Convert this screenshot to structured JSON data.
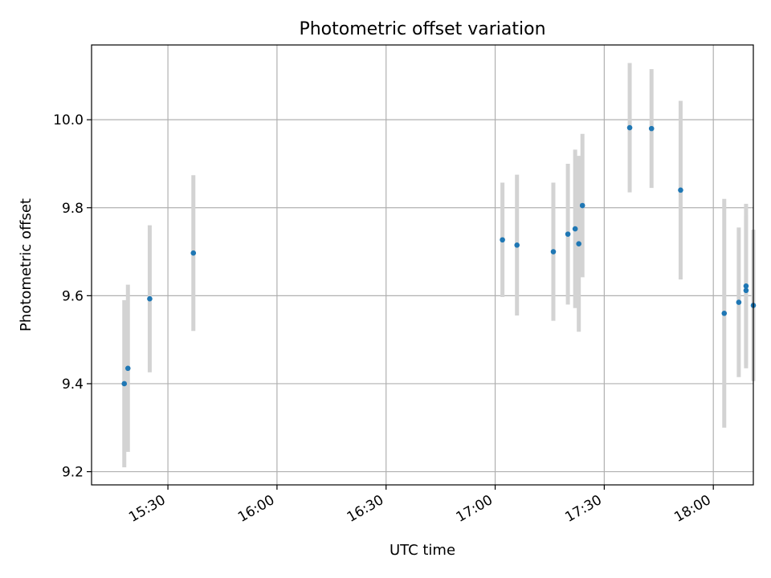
{
  "chart_data": {
    "type": "scatter",
    "title": "Photometric offset variation",
    "xlabel": "UTC time",
    "ylabel": "Photometric offset",
    "x_ticks": [
      "15:30",
      "16:00",
      "16:30",
      "17:00",
      "17:30",
      "18:00"
    ],
    "y_ticks": [
      "9.2",
      "9.4",
      "9.6",
      "9.8",
      "10.0"
    ],
    "xlim": [
      "15:09",
      "18:11"
    ],
    "ylim": [
      9.17,
      10.17
    ],
    "grid": true,
    "marker_color": "#1f77b4",
    "errorbar_color": "#d3d3d3",
    "series": [
      {
        "points": [
          {
            "x": "15:18",
            "y": 9.4,
            "yerr": 0.19
          },
          {
            "x": "15:19",
            "y": 9.435,
            "yerr": 0.19
          },
          {
            "x": "15:25",
            "y": 9.593,
            "yerr": 0.167
          },
          {
            "x": "15:37",
            "y": 9.697,
            "yerr": 0.177
          },
          {
            "x": "17:02",
            "y": 9.727,
            "yerr": 0.13
          },
          {
            "x": "17:06",
            "y": 9.715,
            "yerr": 0.16
          },
          {
            "x": "17:16",
            "y": 9.7,
            "yerr": 0.157
          },
          {
            "x": "17:20",
            "y": 9.74,
            "yerr": 0.16
          },
          {
            "x": "17:22",
            "y": 9.752,
            "yerr": 0.18
          },
          {
            "x": "17:23",
            "y": 9.718,
            "yerr": 0.2
          },
          {
            "x": "17:24",
            "y": 9.805,
            "yerr": 0.163
          },
          {
            "x": "17:37",
            "y": 9.982,
            "yerr": 0.147
          },
          {
            "x": "17:43",
            "y": 9.98,
            "yerr": 0.135
          },
          {
            "x": "17:51",
            "y": 9.84,
            "yerr": 0.203
          },
          {
            "x": "18:03",
            "y": 9.56,
            "yerr": 0.26
          },
          {
            "x": "18:07",
            "y": 9.585,
            "yerr": 0.17
          },
          {
            "x": "18:09",
            "y": 9.622,
            "yerr": 0.187
          },
          {
            "x": "18:09",
            "y": 9.612,
            "yerr": 0.17
          },
          {
            "x": "18:11",
            "y": 9.578,
            "yerr": 0.172
          }
        ]
      }
    ]
  }
}
